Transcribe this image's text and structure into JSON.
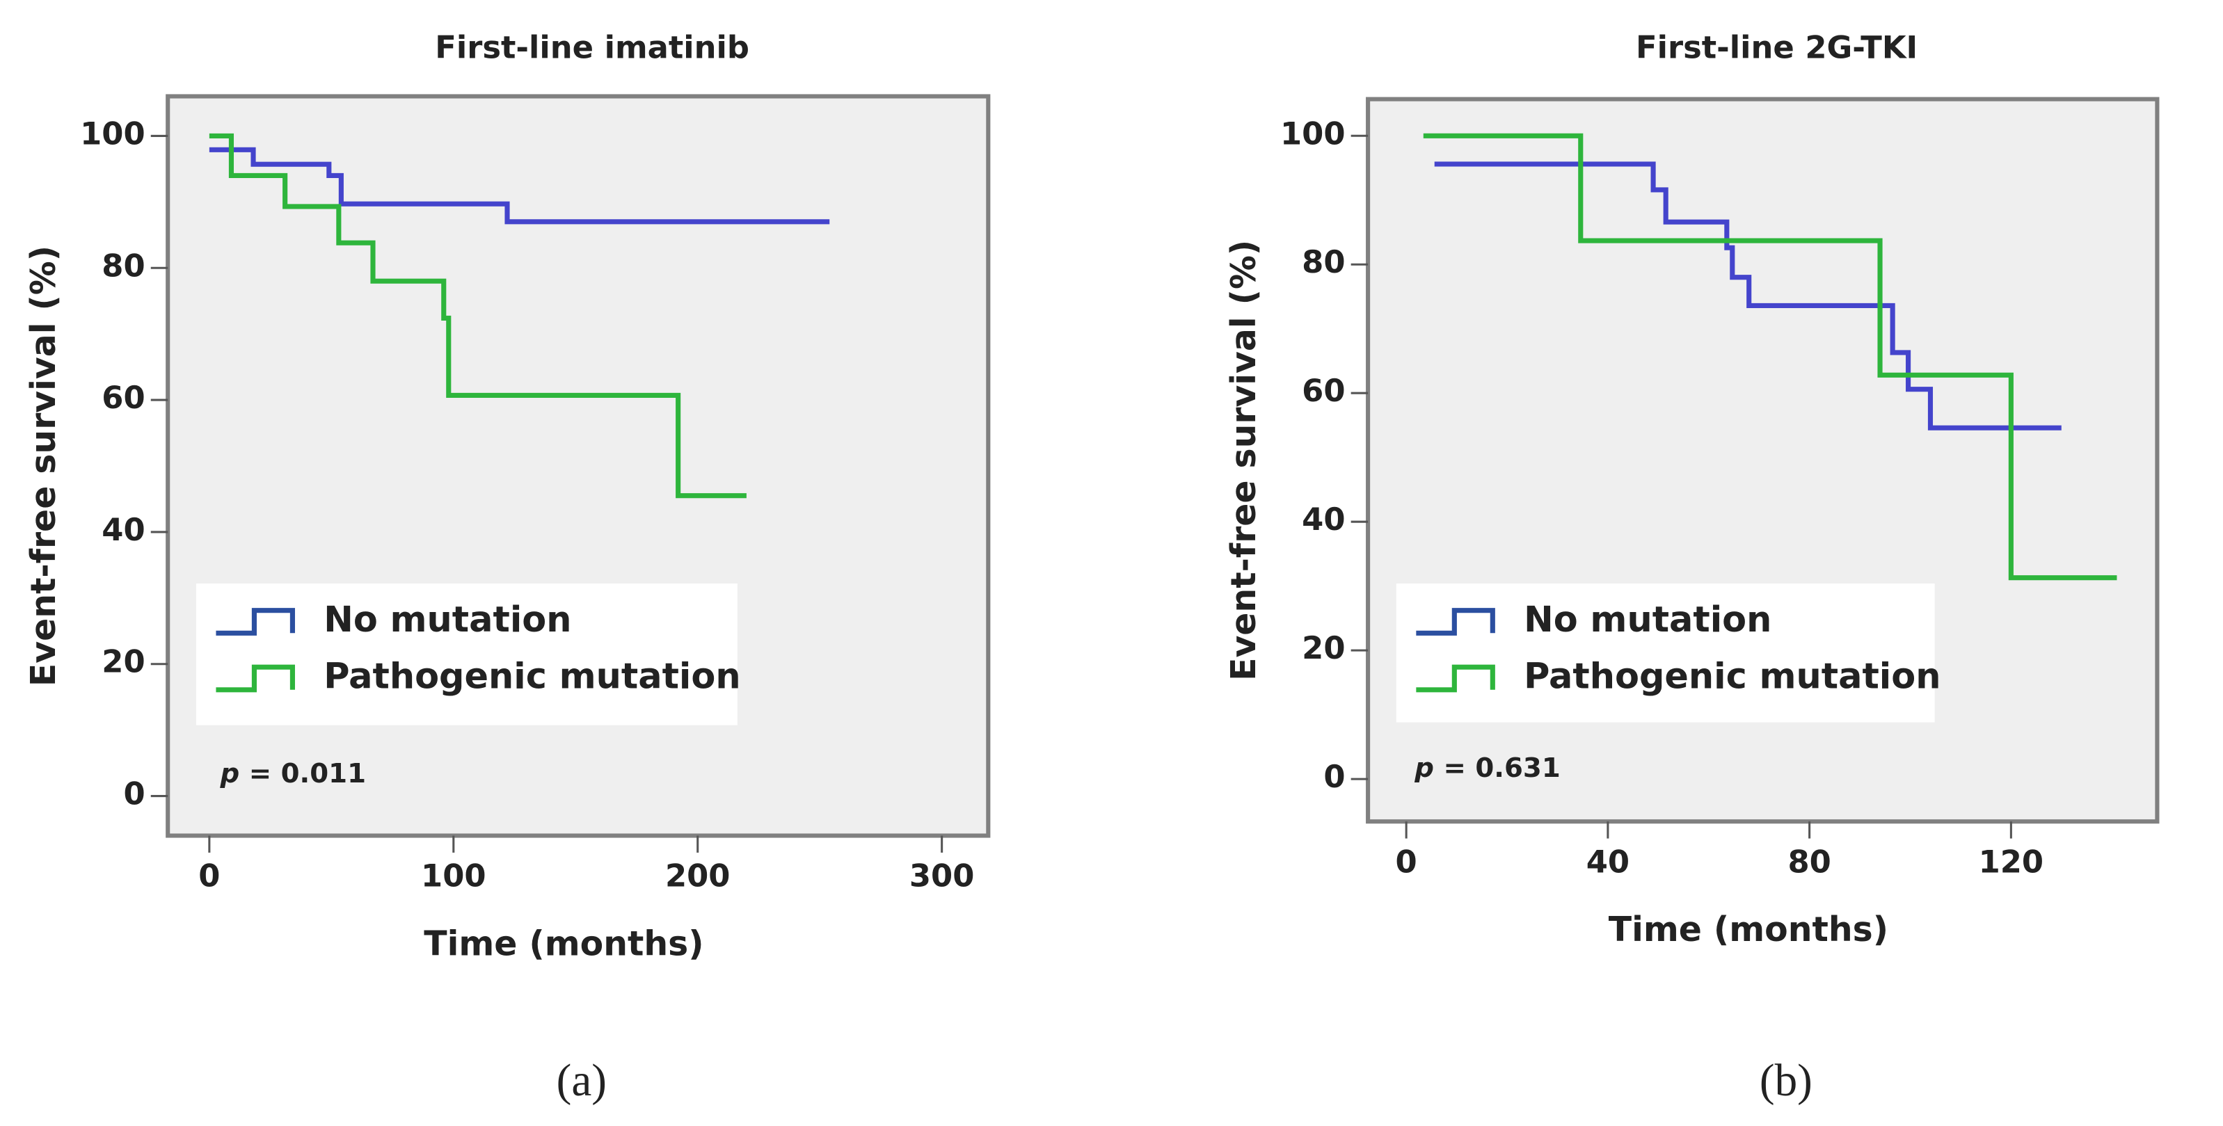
{
  "chart_data": [
    {
      "type": "line",
      "step": true,
      "title": "First-line imatinib",
      "x_label": "Time (months)",
      "y_label": "Event-free survival (%)",
      "xlim": [
        -17,
        319
      ],
      "xticks": [
        0,
        100,
        200,
        300
      ],
      "ylim": [
        -6,
        106
      ],
      "yticks": [
        0,
        20,
        40,
        60,
        80,
        100
      ],
      "background": "#efefef",
      "series": [
        {
          "name": "No mutation",
          "color": "#4444cc",
          "x": [
            0,
            18,
            49,
            54,
            122,
            254
          ],
          "values": [
            97.9,
            95.7,
            94.0,
            89.7,
            87.0,
            87.0
          ]
        },
        {
          "name": "Pathogenic mutation",
          "color": "#2eb53c",
          "x": [
            0,
            9,
            31,
            53,
            67,
            96,
            98,
            192,
            220
          ],
          "values": [
            100,
            94.0,
            89.3,
            83.8,
            78.0,
            72.4,
            60.7,
            45.5,
            45.5
          ]
        }
      ],
      "annotation": {
        "symbol": "p",
        "text": "= 0.011"
      },
      "panel_label": "(a)"
    },
    {
      "type": "line",
      "step": true,
      "title": "First-line 2G-TKI",
      "x_label": "Time (months)",
      "y_label": "Event-free survival (%)",
      "xlim": [
        -7.6,
        149
      ],
      "xticks": [
        0,
        40,
        80,
        120
      ],
      "ylim": [
        -6.6,
        105.7
      ],
      "yticks": [
        0,
        20,
        40,
        60,
        80,
        100
      ],
      "background": "#efefef",
      "series": [
        {
          "name": "No mutation",
          "color": "#4444cc",
          "x": [
            5.6,
            49,
            51.5,
            63.6,
            64.7,
            68,
            96.5,
            99.6,
            104,
            130
          ],
          "values": [
            95.6,
            91.6,
            86.6,
            82.6,
            78.0,
            73.6,
            66.3,
            60.6,
            54.6,
            54.6
          ]
        },
        {
          "name": "Pathogenic mutation",
          "color": "#2eb53c",
          "x": [
            3.4,
            34.6,
            94,
            120,
            141
          ],
          "values": [
            100,
            83.7,
            62.8,
            31.3,
            31.3
          ]
        }
      ],
      "annotation": {
        "symbol": "p",
        "text": "= 0.631"
      },
      "panel_label": "(b)"
    }
  ]
}
